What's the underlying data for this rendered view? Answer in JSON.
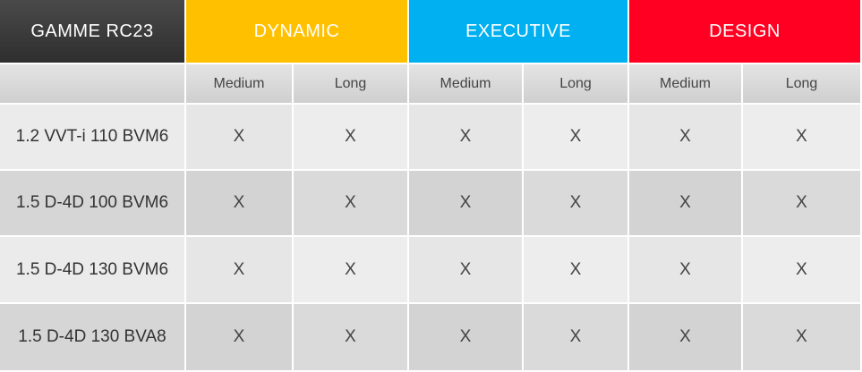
{
  "table": {
    "header": [
      "GAMME RC23",
      "DYNAMIC",
      "EXECUTIVE",
      "DESIGN"
    ],
    "subheader": [
      "Medium",
      "Long",
      "Medium",
      "Long",
      "Medium",
      "Long"
    ],
    "rows": [
      [
        "1.2 VVT-i 110 BVM6",
        "X",
        "X",
        "X",
        "X",
        "X",
        "X"
      ],
      [
        "1.5 D-4D 100 BVM6",
        "X",
        "X",
        "X",
        "X",
        "X",
        "X"
      ],
      [
        "1.5 D-4D 130 BVM6",
        "X",
        "X",
        "X",
        "X",
        "X",
        "X"
      ],
      [
        "1.5 D-4D 130 BVA8",
        "X",
        "X",
        "X",
        "X",
        "X",
        "X"
      ]
    ]
  }
}
